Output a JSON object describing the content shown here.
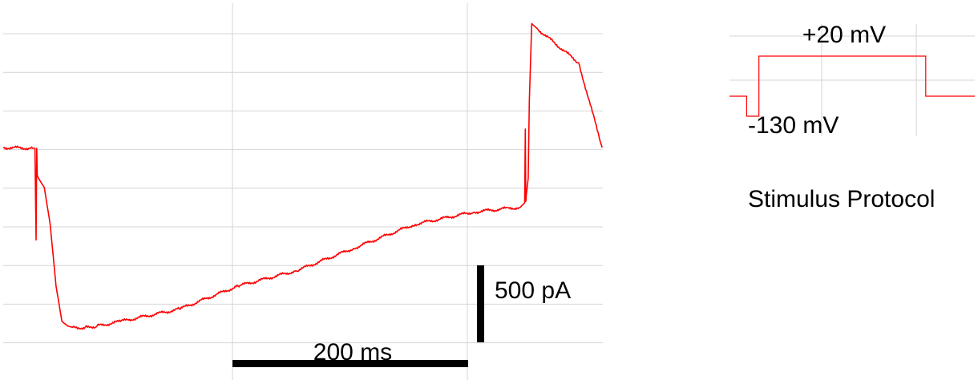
{
  "chart_data": [
    {
      "type": "line",
      "grid": true,
      "xlabel": "",
      "ylabel": "",
      "scale_bars": {
        "time": {
          "value": 200,
          "unit": "ms",
          "label": "200 ms"
        },
        "current": {
          "value": 500,
          "unit": "pA",
          "label": "500 pA"
        }
      },
      "series": [
        {
          "color": "#ff0000",
          "t_ms": [
            0,
            25,
            27,
            28,
            28.5,
            29,
            30,
            35,
            40,
            45,
            50,
            55,
            60,
            70,
            80,
            100,
            150,
            200,
            250,
            300,
            350,
            400,
            430,
            440,
            444,
            444.6,
            445,
            445.5,
            447,
            448,
            450,
            455,
            490,
            510
          ],
          "current_pA": [
            0,
            -5,
            -5,
            -600,
            -5,
            -180,
            -200,
            -260,
            -500,
            -900,
            -1130,
            -1160,
            -1170,
            -1170,
            -1160,
            -1130,
            -1050,
            -900,
            -800,
            -650,
            -500,
            -420,
            -395,
            -390,
            -360,
            120,
            -350,
            -300,
            -200,
            300,
            805,
            770,
            550,
            0
          ]
        }
      ]
    },
    {
      "type": "line",
      "grid": true,
      "title": "Stimulus Protocol",
      "labels": {
        "high": "+20 mV",
        "low": "-130 mV"
      },
      "series": [
        {
          "color": "#ff0000",
          "t_rel": [
            0,
            0.07,
            0.07,
            0.12,
            0.12,
            0.8,
            0.8,
            1.0
          ],
          "mV": [
            -80,
            -80,
            -130,
            -130,
            20,
            20,
            -80,
            -80
          ]
        }
      ]
    }
  ]
}
